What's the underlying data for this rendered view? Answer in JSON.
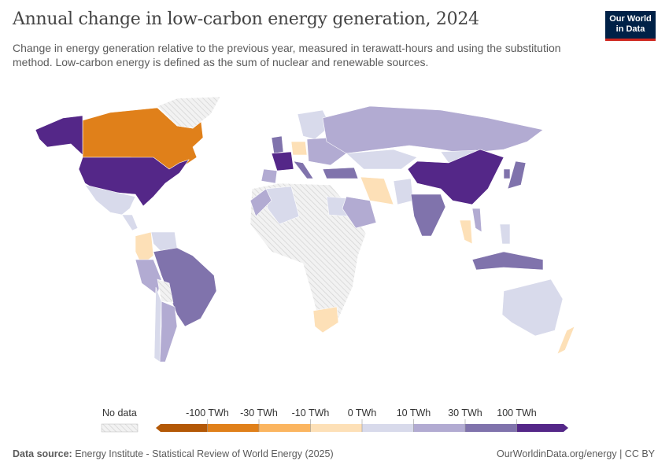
{
  "header": {
    "title": "Annual change in low-carbon energy generation, 2024",
    "subtitle": "Change in energy generation relative to the previous year, measured in terawatt-hours and using the substitution method. Low-carbon energy is defined as the sum of nuclear and renewable sources.",
    "logo": "Our World in Data"
  },
  "legend": {
    "no_data": "No data",
    "labels": [
      "-100 TWh",
      "-30 TWh",
      "-10 TWh",
      "0 TWh",
      "10 TWh",
      "30 TWh",
      "100 TWh"
    ],
    "colors": [
      "#b35806",
      "#e0801a",
      "#fbb560",
      "#fde0b7",
      "#d8daeb",
      "#b2abd2",
      "#8073ac",
      "#542788"
    ],
    "no_data_color": "#e8e8e8"
  },
  "map": {
    "regions": [
      {
        "name": "Canada",
        "bin": 1
      },
      {
        "name": "United States",
        "bin": 7
      },
      {
        "name": "Alaska",
        "bin": 7
      },
      {
        "name": "Greenland",
        "bin": -1
      },
      {
        "name": "Mexico",
        "bin": 4
      },
      {
        "name": "Central America",
        "bin": 4
      },
      {
        "name": "Colombia",
        "bin": 3
      },
      {
        "name": "Venezuela",
        "bin": 4
      },
      {
        "name": "Brazil",
        "bin": 6
      },
      {
        "name": "Peru",
        "bin": 5
      },
      {
        "name": "Bolivia",
        "bin": -1
      },
      {
        "name": "Argentina",
        "bin": 5
      },
      {
        "name": "Chile",
        "bin": 4
      },
      {
        "name": "Africa",
        "bin": -1
      },
      {
        "name": "Algeria",
        "bin": 4
      },
      {
        "name": "Egypt",
        "bin": 4
      },
      {
        "name": "Morocco",
        "bin": 5
      },
      {
        "name": "South Africa",
        "bin": 3
      },
      {
        "name": "United Kingdom",
        "bin": 6
      },
      {
        "name": "France",
        "bin": 7
      },
      {
        "name": "Spain",
        "bin": 5
      },
      {
        "name": "Germany",
        "bin": 3
      },
      {
        "name": "Nordics",
        "bin": 4
      },
      {
        "name": "Italy",
        "bin": 6
      },
      {
        "name": "Eastern Europe",
        "bin": 5
      },
      {
        "name": "Turkey",
        "bin": 6
      },
      {
        "name": "Russia",
        "bin": 5
      },
      {
        "name": "Kazakhstan",
        "bin": 4
      },
      {
        "name": "Mongolia",
        "bin": 4
      },
      {
        "name": "China",
        "bin": 7
      },
      {
        "name": "Iran",
        "bin": 3
      },
      {
        "name": "Saudi Arabia",
        "bin": 5
      },
      {
        "name": "Pakistan",
        "bin": 4
      },
      {
        "name": "India",
        "bin": 6
      },
      {
        "name": "Thailand",
        "bin": 3
      },
      {
        "name": "Vietnam",
        "bin": 5
      },
      {
        "name": "Japan",
        "bin": 6
      },
      {
        "name": "South Korea",
        "bin": 6
      },
      {
        "name": "Indonesia",
        "bin": 6
      },
      {
        "name": "Philippines",
        "bin": 4
      },
      {
        "name": "Australia",
        "bin": 4
      },
      {
        "name": "New Zealand",
        "bin": 3
      }
    ]
  },
  "footer": {
    "source_label": "Data source:",
    "source": "Energy Institute - Statistical Review of World Energy (2025)",
    "link": "OurWorldinData.org/energy",
    "license": "| CC BY"
  }
}
